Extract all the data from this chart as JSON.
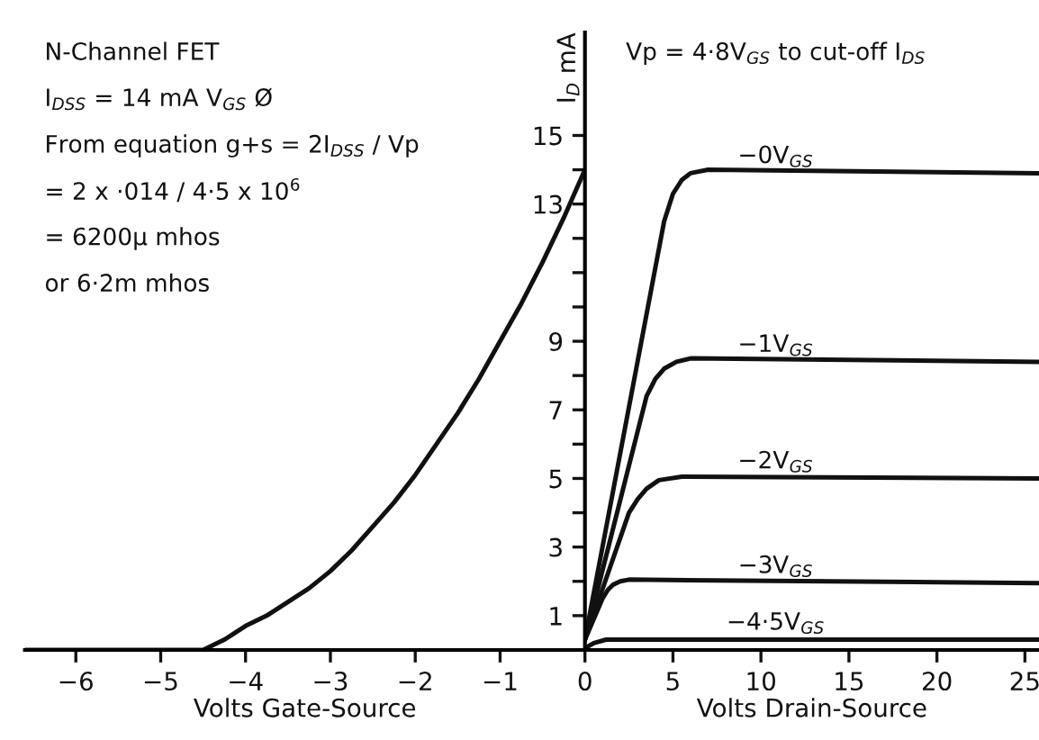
{
  "chart_data": [
    {
      "type": "line",
      "xlabel": "Volts Gate-Source",
      "xlim": [
        -6.6,
        0
      ],
      "xticks": [
        -6,
        -5,
        -4,
        -3,
        -2,
        -1
      ],
      "ylim": [
        0,
        18
      ],
      "tick_labels": "x",
      "grid": false,
      "legend": false,
      "line_style": "solid",
      "series": [
        {
          "color": "#111111",
          "x": [
            -6.6,
            -4.5,
            -4.25,
            -4.0,
            -3.75,
            -3.5,
            -3.25,
            -3.0,
            -2.75,
            -2.5,
            -2.25,
            -2.0,
            -1.75,
            -1.5,
            -1.25,
            -1.0,
            -0.75,
            -0.5,
            -0.25,
            0
          ],
          "values": [
            0,
            0,
            0.3,
            0.7,
            1.0,
            1.4,
            1.8,
            2.3,
            2.9,
            3.6,
            4.3,
            5.1,
            6.0,
            6.9,
            7.9,
            9.0,
            10.1,
            11.3,
            12.6,
            14
          ]
        }
      ],
      "annotations": [
        "N-Channel FET",
        "I$_{DSS}$ = 14 mA V$_{GS}$ Ø",
        "From equation g+s = 2I$_{DSS}$ / Vp",
        "= 2 x ·014 / 4·5 x 10$^{6}$",
        "= 6200μ mhos",
        "or 6·2m mhos"
      ]
    },
    {
      "type": "line",
      "xlabel": "Volts Drain-Source",
      "ylabel": "I$_{D}$ mA",
      "xlim": [
        0,
        25.8
      ],
      "xticks": [
        0,
        5,
        10,
        15,
        20,
        25
      ],
      "ylim": [
        0,
        18
      ],
      "yticks": [
        1,
        {
          "value": 2,
          "label": null
        },
        3,
        {
          "value": 4,
          "label": null
        },
        5,
        {
          "value": 6,
          "label": null
        },
        7,
        {
          "value": 8,
          "label": null
        },
        9,
        {
          "value": 10,
          "label": null
        },
        {
          "value": 11,
          "label": null
        },
        {
          "value": 12,
          "label": null
        },
        13,
        {
          "value": 14,
          "label": null
        },
        15
      ],
      "grid": false,
      "legend": false,
      "line_style": "solid",
      "series": [
        {
          "name": "−0V$_{GS}$",
          "color": "#111111",
          "x": [
            0,
            4.5,
            5.0,
            5.5,
            6.0,
            7.0,
            25.8
          ],
          "values": [
            0.3,
            12.5,
            13.3,
            13.7,
            13.9,
            14.0,
            13.9
          ]
        },
        {
          "name": "−1V$_{GS}$",
          "color": "#111111",
          "x": [
            0,
            3.5,
            4.0,
            4.5,
            5.2,
            6.0,
            25.8
          ],
          "values": [
            0.3,
            7.4,
            7.9,
            8.2,
            8.4,
            8.5,
            8.4
          ]
        },
        {
          "name": "−2V$_{GS}$",
          "color": "#111111",
          "x": [
            0,
            2.5,
            3.0,
            3.5,
            4.2,
            5.5,
            25.8
          ],
          "values": [
            0.3,
            4.0,
            4.4,
            4.7,
            4.95,
            5.05,
            5.0
          ]
        },
        {
          "name": "−3V$_{GS}$",
          "color": "#111111",
          "x": [
            0,
            1.0,
            1.3,
            1.6,
            2.0,
            2.5,
            25.8
          ],
          "values": [
            0.3,
            1.5,
            1.75,
            1.9,
            2.0,
            2.05,
            1.95
          ]
        },
        {
          "name": "−4·5V$_{GS}$",
          "color": "#111111",
          "x": [
            0,
            0.5,
            1.2,
            25.8
          ],
          "values": [
            0.05,
            0.2,
            0.3,
            0.3
          ]
        }
      ],
      "annotations": [
        "Vp = 4·8V$_{GS}$ to cut-off I$_{DS}$"
      ]
    }
  ]
}
